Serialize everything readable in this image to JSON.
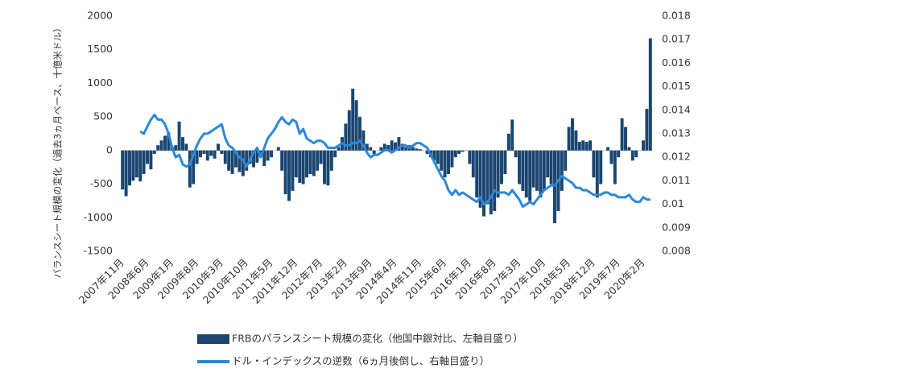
{
  "chart_data": {
    "type": "bar-line",
    "y_label": "バランスシート規模の変化（過去3ヵ月ベース、十億米ドル）",
    "categories": [
      "2007年11月",
      null,
      null,
      null,
      null,
      null,
      null,
      "2008年6月",
      null,
      null,
      null,
      null,
      null,
      null,
      "2009年1月",
      null,
      null,
      null,
      null,
      null,
      null,
      "2009年8月",
      null,
      null,
      null,
      null,
      null,
      null,
      "2010年3月",
      null,
      null,
      null,
      null,
      null,
      null,
      "2010年10月",
      null,
      null,
      null,
      null,
      null,
      null,
      "2011年5月",
      null,
      null,
      null,
      null,
      null,
      null,
      "2011年12月",
      null,
      null,
      null,
      null,
      null,
      null,
      "2012年7月",
      null,
      null,
      null,
      null,
      null,
      null,
      "2013年2月",
      null,
      null,
      null,
      null,
      null,
      null,
      "2013年9月",
      null,
      null,
      null,
      null,
      null,
      null,
      "2014年4月",
      null,
      null,
      null,
      null,
      null,
      null,
      "2014年11月",
      null,
      null,
      null,
      null,
      null,
      null,
      "2015年6月",
      null,
      null,
      null,
      null,
      null,
      null,
      "2016年1月",
      null,
      null,
      null,
      null,
      null,
      null,
      "2016年8月",
      null,
      null,
      null,
      null,
      null,
      null,
      "2017年3月",
      null,
      null,
      null,
      null,
      null,
      null,
      "2017年10月",
      null,
      null,
      null,
      null,
      null,
      null,
      "2018年5月",
      null,
      null,
      null,
      null,
      null,
      null,
      "2018年12月",
      null,
      null,
      null,
      null,
      null,
      null,
      "2019年7月",
      null,
      null,
      null,
      null,
      null,
      null,
      "2020年2月",
      null,
      null
    ],
    "series": [
      {
        "name": "FRBのバランスシート規模の変化（他国中銀対比、左軸目盛り）",
        "type": "bar",
        "color": "#1a4671",
        "values": [
          -580,
          -680,
          -520,
          -450,
          -400,
          -460,
          -350,
          -200,
          -280,
          -50,
          80,
          150,
          220,
          270,
          60,
          80,
          430,
          200,
          100,
          -550,
          -500,
          -200,
          -100,
          -50,
          -150,
          -80,
          -120,
          100,
          -50,
          -200,
          -300,
          -350,
          -250,
          -320,
          -380,
          -300,
          -200,
          -250,
          -180,
          -100,
          -230,
          -150,
          -100,
          0,
          50,
          -300,
          -650,
          -750,
          -600,
          -400,
          -480,
          -500,
          -400,
          -350,
          -380,
          -300,
          -200,
          -500,
          -520,
          -300,
          -100,
          50,
          200,
          400,
          600,
          920,
          750,
          500,
          300,
          100,
          50,
          -50,
          0,
          50,
          100,
          80,
          150,
          120,
          200,
          100,
          50,
          80,
          50,
          30,
          20,
          0,
          -50,
          -100,
          -150,
          -200,
          -300,
          -400,
          -350,
          -250,
          -100,
          -50,
          -20,
          0,
          -200,
          -400,
          -700,
          -850,
          -980,
          -800,
          -950,
          -900,
          -700,
          -500,
          -350,
          250,
          460,
          -100,
          -500,
          -600,
          -700,
          -750,
          -550,
          -600,
          -700,
          -600,
          -400,
          -500,
          -1080,
          -900,
          -600,
          -300,
          350,
          480,
          300,
          130,
          150,
          130,
          150,
          -400,
          -700,
          -500,
          0,
          50,
          -200,
          -500,
          -100,
          480,
          350,
          50,
          -150,
          -100,
          0,
          150,
          620,
          1670
        ]
      },
      {
        "name": "ドル・インデックスの逆数（6ヵ月後倒し、右軸目盛り）",
        "type": "line",
        "axis": "y2",
        "color": "#2b88d8",
        "values": [
          null,
          null,
          null,
          null,
          null,
          0.0131,
          0.013,
          0.0133,
          0.0136,
          0.0138,
          0.0136,
          0.0136,
          0.0134,
          0.013,
          0.0124,
          0.012,
          0.0121,
          0.0117,
          0.0116,
          0.0117,
          0.0121,
          0.0125,
          0.0128,
          0.013,
          0.013,
          0.0131,
          0.0132,
          0.0133,
          0.0134,
          0.0128,
          0.0125,
          0.0124,
          0.0122,
          0.012,
          0.0119,
          0.0116,
          0.0119,
          0.0122,
          0.0124,
          0.012,
          0.0124,
          0.0128,
          0.013,
          0.0132,
          0.0135,
          0.0137,
          0.0135,
          0.0134,
          0.0136,
          0.0135,
          0.013,
          0.0132,
          0.0128,
          0.0127,
          0.0126,
          0.0127,
          0.0127,
          0.0126,
          0.0124,
          0.0124,
          0.0124,
          0.0125,
          0.0126,
          0.0125,
          0.0125,
          0.0126,
          0.0126,
          0.0127,
          0.0125,
          0.0122,
          0.012,
          0.0121,
          0.0121,
          0.0122,
          0.0123,
          0.0123,
          0.0122,
          0.0123,
          0.0124,
          0.0125,
          0.0125,
          0.0124,
          0.0125,
          0.0126,
          0.0126,
          0.0125,
          0.0124,
          0.0121,
          0.0118,
          0.0115,
          0.0112,
          0.011,
          0.0106,
          0.0104,
          0.0106,
          0.0104,
          0.0105,
          0.0104,
          0.0103,
          0.0102,
          0.0101,
          0.0103,
          0.01,
          0.0101,
          0.0103,
          0.0106,
          0.0105,
          0.0105,
          0.0105,
          0.0104,
          0.0106,
          0.0104,
          0.0102,
          0.0099,
          0.01,
          0.0101,
          0.01,
          0.0102,
          0.0104,
          0.0106,
          0.0107,
          0.0108,
          0.0108,
          0.011,
          0.0112,
          0.0111,
          0.011,
          0.0109,
          0.0107,
          0.0107,
          0.0106,
          0.0106,
          0.0105,
          0.0104,
          0.0104,
          0.0104,
          0.0105,
          0.0105,
          0.0104,
          0.0104,
          0.0103,
          0.0103,
          0.0103,
          0.0104,
          0.0102,
          0.0101,
          0.0101,
          0.0103,
          0.0102,
          0.0102
        ]
      }
    ],
    "ylim": [
      -1500,
      2000
    ],
    "yticks": [
      2000,
      1500,
      1000,
      500,
      0,
      -500,
      -1000,
      -1500
    ],
    "y2lim": [
      0.008,
      0.018
    ],
    "y2ticks": [
      0.018,
      0.017,
      0.016,
      0.015,
      0.014,
      0.013,
      0.012,
      0.011,
      0.01,
      0.009,
      0.008
    ],
    "grid": false
  }
}
